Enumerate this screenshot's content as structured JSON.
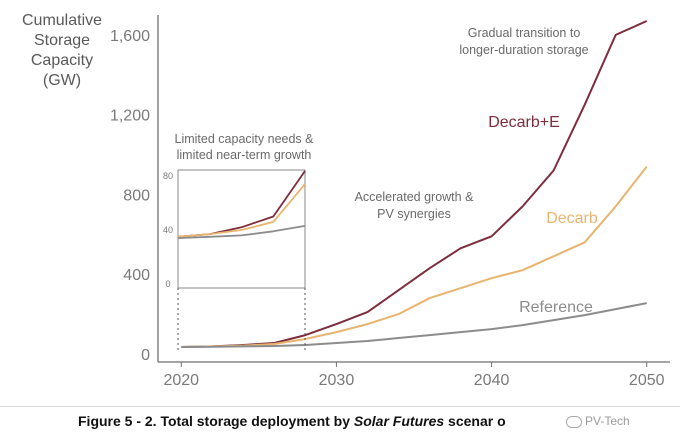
{
  "chart_data": {
    "type": "line",
    "ylabel_lines": [
      "Cumulative",
      "Storage",
      "Capacity",
      "(GW)"
    ],
    "y_ticks": [
      0,
      400,
      800,
      1200,
      1600
    ],
    "y_tick_labels": [
      "0",
      "400",
      "800",
      "1,200",
      "1,600"
    ],
    "x_ticks": [
      2020,
      2030,
      2040,
      2050
    ],
    "x_tick_labels": [
      "2020",
      "2030",
      "2040",
      "2050"
    ],
    "xlim": [
      2018.5,
      2051.5
    ],
    "ylim": [
      0,
      1700
    ],
    "grid": false,
    "series": [
      {
        "name": "Decarb+E",
        "color": "#7d2d3b",
        "x": [
          2020,
          2022,
          2024,
          2026,
          2028,
          2030,
          2032,
          2034,
          2036,
          2038,
          2040,
          2042,
          2044,
          2046,
          2048,
          2050
        ],
        "values": [
          35,
          38,
          45,
          55,
          95,
          150,
          210,
          320,
          430,
          530,
          590,
          740,
          920,
          1250,
          1600,
          1670
        ]
      },
      {
        "name": "Decarb",
        "color": "#e8b46e",
        "x": [
          2020,
          2022,
          2024,
          2026,
          2028,
          2030,
          2032,
          2034,
          2036,
          2038,
          2040,
          2042,
          2044,
          2046,
          2048,
          2050
        ],
        "values": [
          35,
          38,
          42,
          50,
          75,
          110,
          150,
          200,
          280,
          330,
          380,
          420,
          490,
          560,
          740,
          940
        ]
      },
      {
        "name": "Reference",
        "color": "#8c8c8c",
        "x": [
          2020,
          2022,
          2024,
          2026,
          2028,
          2030,
          2032,
          2034,
          2036,
          2038,
          2040,
          2042,
          2044,
          2046,
          2048,
          2050
        ],
        "values": [
          35,
          36,
          38,
          40,
          45,
          55,
          65,
          80,
          95,
          110,
          125,
          145,
          170,
          195,
          225,
          255
        ]
      }
    ],
    "annotations": [
      {
        "lines": [
          "Gradual transition to",
          "longer-duration storage"
        ]
      },
      {
        "lines": [
          "Accelerated growth &",
          "PV synergies"
        ]
      }
    ],
    "inset": {
      "title_lines": [
        "Limited capacity needs &",
        "limited near-term growth"
      ],
      "y_ticks": [
        0,
        40,
        80
      ],
      "y_tick_labels": [
        "0",
        "40",
        "80"
      ],
      "ylim": [
        0,
        80
      ],
      "xlim": [
        2020,
        2028
      ],
      "series": [
        {
          "name": "Decarb+E",
          "x": [
            2020,
            2022,
            2024,
            2026,
            2028
          ],
          "values": [
            35,
            37,
            42,
            50,
            85
          ]
        },
        {
          "name": "Decarb",
          "x": [
            2020,
            2022,
            2024,
            2026,
            2028
          ],
          "values": [
            35,
            37,
            40,
            46,
            74
          ]
        },
        {
          "name": "Reference",
          "x": [
            2020,
            2022,
            2024,
            2026,
            2028
          ],
          "values": [
            34,
            35,
            36,
            39,
            43
          ]
        }
      ]
    }
  },
  "caption": {
    "prefix": "Figure 5 - 2. Total storage deployment by ",
    "emphasis": "Solar Futures",
    "suffix": " scenar o"
  },
  "watermark": "PV-Tech"
}
